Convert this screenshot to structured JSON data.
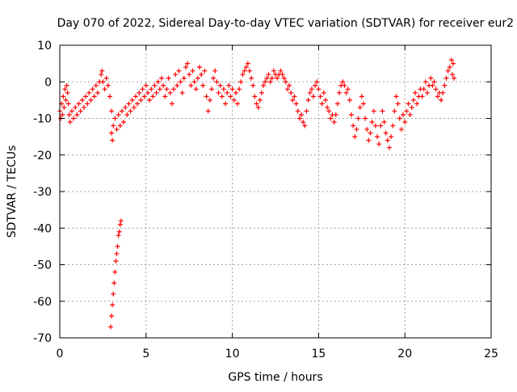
{
  "chart_data": {
    "type": "scatter",
    "title": "Day 070 of 2022, Sidereal Day-to-day VTEC variation (SDTVAR) for receiver eur2",
    "xlabel": "GPS time / hours",
    "ylabel": "SDTVAR / TECUs",
    "xlim": [
      0,
      25
    ],
    "ylim": [
      -70,
      10
    ],
    "xticks": [
      0,
      5,
      10,
      15,
      20,
      25
    ],
    "yticks": [
      10,
      0,
      -10,
      -20,
      -30,
      -40,
      -50,
      -60,
      -70
    ],
    "xtick_labels": [
      "0",
      "5",
      "10",
      "15",
      "20",
      "25"
    ],
    "ytick_labels": [
      "10",
      "0",
      "-10",
      "-20",
      "-30",
      "-40",
      "-50",
      "-60",
      "-70"
    ],
    "grid": true,
    "marker": "plus",
    "series": [
      {
        "name": "SDTVAR",
        "color": "#ff0000",
        "points": [
          [
            0.0,
            -8
          ],
          [
            0.05,
            -10
          ],
          [
            0.1,
            -6
          ],
          [
            0.15,
            -9
          ],
          [
            0.2,
            -4
          ],
          [
            0.25,
            -7
          ],
          [
            0.3,
            -2
          ],
          [
            0.35,
            -5
          ],
          [
            0.4,
            -1
          ],
          [
            0.45,
            -3
          ],
          [
            0.5,
            -6
          ],
          [
            0.55,
            -9
          ],
          [
            0.6,
            -11
          ],
          [
            0.7,
            -8
          ],
          [
            0.8,
            -10
          ],
          [
            0.9,
            -7
          ],
          [
            1.0,
            -9
          ],
          [
            1.1,
            -6
          ],
          [
            1.2,
            -8
          ],
          [
            1.3,
            -5
          ],
          [
            1.4,
            -7
          ],
          [
            1.5,
            -4
          ],
          [
            1.6,
            -6
          ],
          [
            1.7,
            -3
          ],
          [
            1.8,
            -5
          ],
          [
            1.9,
            -2
          ],
          [
            2.0,
            -4
          ],
          [
            2.1,
            -1
          ],
          [
            2.2,
            -3
          ],
          [
            2.3,
            0
          ],
          [
            2.4,
            2
          ],
          [
            2.45,
            3
          ],
          [
            2.5,
            0
          ],
          [
            2.6,
            -2
          ],
          [
            2.7,
            1
          ],
          [
            2.8,
            -1
          ],
          [
            2.9,
            -4
          ],
          [
            3.0,
            -8
          ],
          [
            3.0,
            -14
          ],
          [
            3.05,
            -16
          ],
          [
            3.1,
            -12
          ],
          [
            3.2,
            -10
          ],
          [
            3.3,
            -13
          ],
          [
            3.4,
            -9
          ],
          [
            3.5,
            -12
          ],
          [
            3.6,
            -8
          ],
          [
            3.7,
            -11
          ],
          [
            3.8,
            -7
          ],
          [
            3.9,
            -9
          ],
          [
            4.0,
            -6
          ],
          [
            4.1,
            -8
          ],
          [
            4.2,
            -5
          ],
          [
            4.3,
            -7
          ],
          [
            4.4,
            -4
          ],
          [
            4.5,
            -6
          ],
          [
            4.6,
            -3
          ],
          [
            4.7,
            -5
          ],
          [
            4.8,
            -2
          ],
          [
            4.9,
            -4
          ],
          [
            5.0,
            -1
          ],
          [
            5.1,
            -3
          ],
          [
            5.2,
            -5
          ],
          [
            5.3,
            -2
          ],
          [
            5.4,
            -4
          ],
          [
            5.5,
            -1
          ],
          [
            5.6,
            -3
          ],
          [
            5.7,
            0
          ],
          [
            5.8,
            -2
          ],
          [
            5.9,
            1
          ],
          [
            6.0,
            -1
          ],
          [
            6.1,
            -4
          ],
          [
            6.2,
            -2
          ],
          [
            6.3,
            1
          ],
          [
            6.4,
            -3
          ],
          [
            6.5,
            -6
          ],
          [
            6.6,
            -2
          ],
          [
            6.7,
            2
          ],
          [
            6.8,
            -1
          ],
          [
            6.9,
            3
          ],
          [
            7.0,
            0
          ],
          [
            7.1,
            -3
          ],
          [
            7.2,
            1
          ],
          [
            7.3,
            4
          ],
          [
            7.4,
            5
          ],
          [
            7.5,
            2
          ],
          [
            7.6,
            -1
          ],
          [
            7.7,
            3
          ],
          [
            7.8,
            0
          ],
          [
            7.9,
            -2
          ],
          [
            8.0,
            1
          ],
          [
            8.1,
            4
          ],
          [
            8.2,
            2
          ],
          [
            8.3,
            -1
          ],
          [
            8.4,
            3
          ],
          [
            8.5,
            -4
          ],
          [
            8.6,
            -8
          ],
          [
            8.7,
            -5
          ],
          [
            8.8,
            -2
          ],
          [
            8.9,
            1
          ],
          [
            9.0,
            3
          ],
          [
            9.1,
            0
          ],
          [
            9.2,
            -3
          ],
          [
            9.3,
            -1
          ],
          [
            9.4,
            -4
          ],
          [
            9.5,
            -2
          ],
          [
            9.6,
            -6
          ],
          [
            9.7,
            -3
          ],
          [
            9.8,
            -1
          ],
          [
            9.9,
            -4
          ],
          [
            10.0,
            -2
          ],
          [
            10.1,
            -5
          ],
          [
            10.2,
            -3
          ],
          [
            10.3,
            -6
          ],
          [
            10.4,
            -2
          ],
          [
            10.5,
            0
          ],
          [
            10.6,
            2
          ],
          [
            10.7,
            3
          ],
          [
            10.8,
            4
          ],
          [
            10.9,
            5
          ],
          [
            11.0,
            3
          ],
          [
            11.1,
            1
          ],
          [
            11.2,
            -1
          ],
          [
            11.3,
            -4
          ],
          [
            11.4,
            -6
          ],
          [
            11.5,
            -7
          ],
          [
            11.6,
            -5
          ],
          [
            11.7,
            -3
          ],
          [
            11.8,
            -1
          ],
          [
            11.9,
            0
          ],
          [
            12.0,
            1
          ],
          [
            12.1,
            2
          ],
          [
            12.2,
            0
          ],
          [
            12.3,
            1
          ],
          [
            12.4,
            3
          ],
          [
            12.5,
            2
          ],
          [
            12.6,
            1
          ],
          [
            12.7,
            2
          ],
          [
            12.8,
            3
          ],
          [
            12.9,
            2
          ],
          [
            13.0,
            1
          ],
          [
            13.1,
            0
          ],
          [
            13.2,
            -2
          ],
          [
            13.3,
            -1
          ],
          [
            13.4,
            -3
          ],
          [
            13.5,
            -5
          ],
          [
            13.6,
            -4
          ],
          [
            13.7,
            -6
          ],
          [
            13.8,
            -8
          ],
          [
            13.9,
            -10
          ],
          [
            14.0,
            -9
          ],
          [
            14.1,
            -11
          ],
          [
            14.2,
            -12
          ],
          [
            14.3,
            -8
          ],
          [
            14.4,
            -5
          ],
          [
            14.5,
            -3
          ],
          [
            14.6,
            -2
          ],
          [
            14.7,
            -4
          ],
          [
            14.8,
            -1
          ],
          [
            14.9,
            0
          ],
          [
            15.0,
            -2
          ],
          [
            15.1,
            -4
          ],
          [
            15.2,
            -6
          ],
          [
            15.3,
            -3
          ],
          [
            15.4,
            -5
          ],
          [
            15.5,
            -7
          ],
          [
            15.6,
            -8
          ],
          [
            15.7,
            -10
          ],
          [
            15.8,
            -9
          ],
          [
            15.9,
            -11
          ],
          [
            16.0,
            -9
          ],
          [
            16.1,
            -6
          ],
          [
            16.2,
            -3
          ],
          [
            16.3,
            -1
          ],
          [
            16.4,
            0
          ],
          [
            16.5,
            -1
          ],
          [
            16.6,
            -3
          ],
          [
            16.7,
            -2
          ],
          [
            16.8,
            -5
          ],
          [
            16.9,
            -9
          ],
          [
            17.0,
            -12
          ],
          [
            17.1,
            -15
          ],
          [
            17.2,
            -13
          ],
          [
            17.3,
            -10
          ],
          [
            17.4,
            -7
          ],
          [
            17.5,
            -4
          ],
          [
            17.6,
            -6
          ],
          [
            17.7,
            -10
          ],
          [
            17.8,
            -13
          ],
          [
            17.9,
            -16
          ],
          [
            18.0,
            -14
          ],
          [
            18.1,
            -11
          ],
          [
            18.2,
            -8
          ],
          [
            18.3,
            -12
          ],
          [
            18.4,
            -15
          ],
          [
            18.5,
            -17
          ],
          [
            18.6,
            -12
          ],
          [
            18.7,
            -8
          ],
          [
            18.8,
            -11
          ],
          [
            18.9,
            -14
          ],
          [
            19.0,
            -16
          ],
          [
            19.1,
            -18
          ],
          [
            19.2,
            -15
          ],
          [
            19.3,
            -12
          ],
          [
            19.4,
            -8
          ],
          [
            19.5,
            -4
          ],
          [
            19.6,
            -6
          ],
          [
            19.7,
            -10
          ],
          [
            19.8,
            -13
          ],
          [
            19.9,
            -9
          ],
          [
            20.0,
            -11
          ],
          [
            20.1,
            -8
          ],
          [
            20.2,
            -6
          ],
          [
            20.3,
            -9
          ],
          [
            20.4,
            -7
          ],
          [
            20.5,
            -5
          ],
          [
            20.6,
            -3
          ],
          [
            20.7,
            -6
          ],
          [
            20.8,
            -4
          ],
          [
            20.9,
            -2
          ],
          [
            21.0,
            -4
          ],
          [
            21.1,
            -2
          ],
          [
            21.2,
            0
          ],
          [
            21.3,
            -3
          ],
          [
            21.4,
            -1
          ],
          [
            21.5,
            1
          ],
          [
            21.6,
            -1
          ],
          [
            21.7,
            0
          ],
          [
            21.8,
            -2
          ],
          [
            21.9,
            -4
          ],
          [
            22.0,
            -3
          ],
          [
            22.1,
            -5
          ],
          [
            22.2,
            -3
          ],
          [
            22.3,
            -1
          ],
          [
            22.4,
            1
          ],
          [
            22.5,
            3
          ],
          [
            22.6,
            4
          ],
          [
            22.7,
            6
          ],
          [
            22.75,
            2
          ],
          [
            22.8,
            5
          ],
          [
            22.85,
            1
          ],
          [
            2.95,
            -67
          ],
          [
            3.0,
            -64
          ],
          [
            3.05,
            -61
          ],
          [
            3.1,
            -58
          ],
          [
            3.15,
            -55
          ],
          [
            3.2,
            -52
          ],
          [
            3.25,
            -49
          ],
          [
            3.3,
            -47
          ],
          [
            3.35,
            -45
          ],
          [
            3.4,
            -42
          ],
          [
            3.45,
            -41
          ],
          [
            3.5,
            -39
          ],
          [
            3.55,
            -38
          ]
        ]
      }
    ]
  }
}
